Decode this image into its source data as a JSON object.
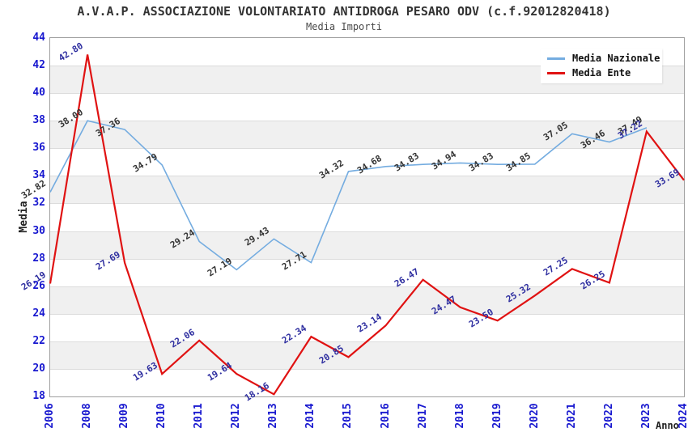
{
  "title": "A.V.A.P. ASSOCIAZIONE VOLONTARIATO ANTIDROGA PESARO ODV (c.f.92012820418)",
  "subtitle": "Media Importi",
  "chart_data": {
    "type": "line",
    "categories": [
      "2006",
      "2008",
      "2009",
      "2010",
      "2011",
      "2012",
      "2013",
      "2014",
      "2015",
      "2016",
      "2017",
      "2018",
      "2019",
      "2020",
      "2021",
      "2022",
      "2023",
      "2024"
    ],
    "series": [
      {
        "name": "Media Nazionale",
        "color": "#74ace0",
        "label_color": "#333333",
        "stroke_width": 1.6,
        "values": [
          32.82,
          38.0,
          37.36,
          34.79,
          29.24,
          27.19,
          29.43,
          27.71,
          34.32,
          34.68,
          34.83,
          34.94,
          34.83,
          34.85,
          37.05,
          36.46,
          37.49,
          null
        ]
      },
      {
        "name": "Media Ente",
        "color": "#e01212",
        "label_color": "#2d2d9f",
        "stroke_width": 2.2,
        "values": [
          26.19,
          42.8,
          27.69,
          19.63,
          22.06,
          19.64,
          18.16,
          22.34,
          20.85,
          23.14,
          26.47,
          24.47,
          23.5,
          25.32,
          27.25,
          26.25,
          37.22,
          33.69
        ]
      }
    ],
    "xlabel": "Anno",
    "ylabel": "Media",
    "ylim": [
      18,
      44
    ],
    "ytick_step": 2,
    "grid": true,
    "legend_position": "top-right",
    "axis_tick_color": "#1717cf",
    "band_colors": [
      "#ffffff",
      "#f0f0f0"
    ]
  }
}
